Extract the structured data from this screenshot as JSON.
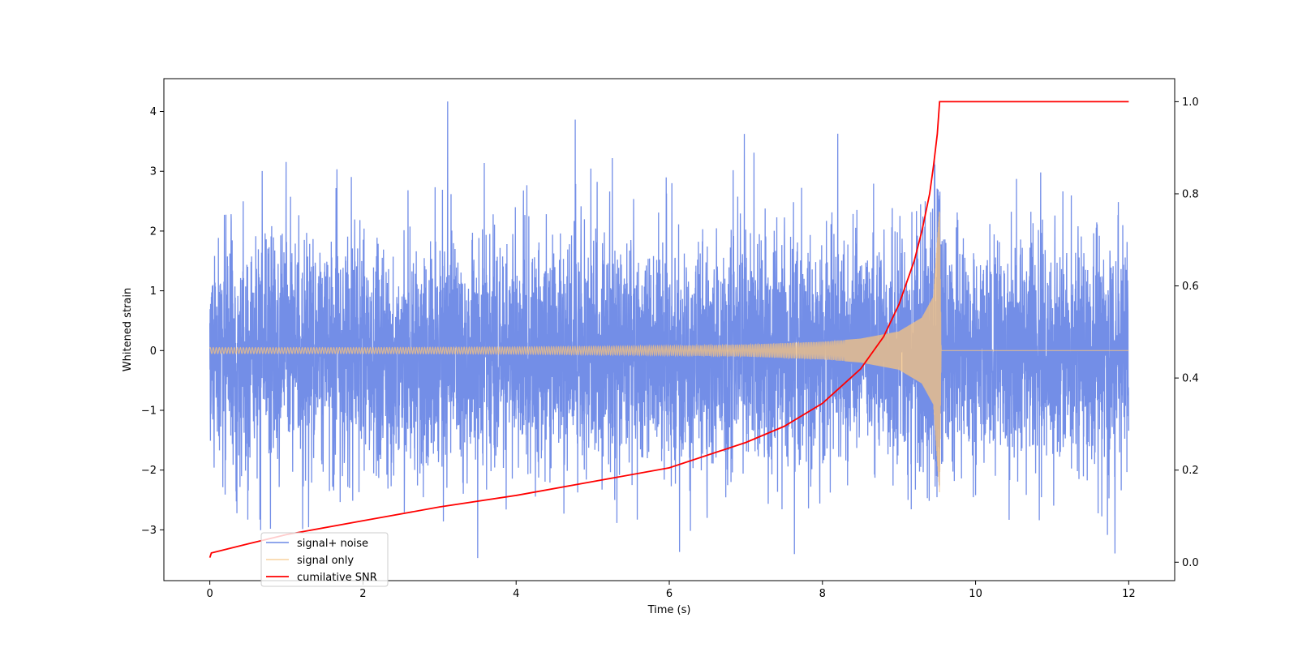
{
  "chart_data": {
    "type": "line",
    "title": "",
    "xlabel": "Time (s)",
    "ylabel": "Whitened strain",
    "y2label": "",
    "xlim": [
      -0.6,
      12.6
    ],
    "ylim": [
      -3.85,
      4.55
    ],
    "y2lim": [
      -0.04,
      1.05
    ],
    "x_ticks": [
      0,
      2,
      4,
      6,
      8,
      10,
      12
    ],
    "x_tick_labels": [
      "0",
      "2",
      "4",
      "6",
      "8",
      "10",
      "12"
    ],
    "y_ticks": [
      4,
      3,
      2,
      1,
      0,
      -1,
      -2,
      -3
    ],
    "y_tick_labels": [
      "4",
      "3",
      "2",
      "1",
      "0",
      "−1",
      "−2",
      "−3"
    ],
    "y2_ticks": [
      1.0,
      0.8,
      0.6,
      0.4,
      0.2,
      0.0
    ],
    "y2_tick_labels": [
      "1.0",
      "0.8",
      "0.6",
      "0.4",
      "0.2",
      "0.0"
    ],
    "grid": false,
    "legend_position": "lower-left",
    "series": [
      {
        "name": "signal+ noise",
        "axis": "left",
        "color": "#6b88e6",
        "description_values": {
          "x_start": 0,
          "x_end": 12,
          "std": 0.95,
          "max": 4.15,
          "min": -3.45
        }
      },
      {
        "name": "signal only",
        "axis": "left",
        "color": "#f7c37f",
        "merger_time": 9.53,
        "envelope": {
          "x": [
            0,
            2,
            4,
            6,
            7,
            8,
            8.5,
            9.0,
            9.3,
            9.45,
            9.53,
            9.55,
            12
          ],
          "amp": [
            0.05,
            0.05,
            0.06,
            0.08,
            0.1,
            0.15,
            0.2,
            0.32,
            0.55,
            0.9,
            2.4,
            0.0,
            0.0
          ]
        }
      },
      {
        "name": "cumilative SNR",
        "axis": "right",
        "color": "#ff0000",
        "x": [
          0,
          0.02,
          0.5,
          1,
          2,
          3,
          4,
          5,
          6,
          7,
          7.5,
          8,
          8.5,
          8.8,
          9.0,
          9.2,
          9.3,
          9.4,
          9.45,
          9.5,
          9.53,
          10,
          11,
          12
        ],
        "y": [
          0.01,
          0.02,
          0.04,
          0.06,
          0.09,
          0.12,
          0.145,
          0.175,
          0.205,
          0.26,
          0.295,
          0.345,
          0.42,
          0.49,
          0.56,
          0.655,
          0.72,
          0.8,
          0.86,
          0.93,
          1.0,
          1.0,
          1.0,
          1.0
        ]
      }
    ]
  }
}
